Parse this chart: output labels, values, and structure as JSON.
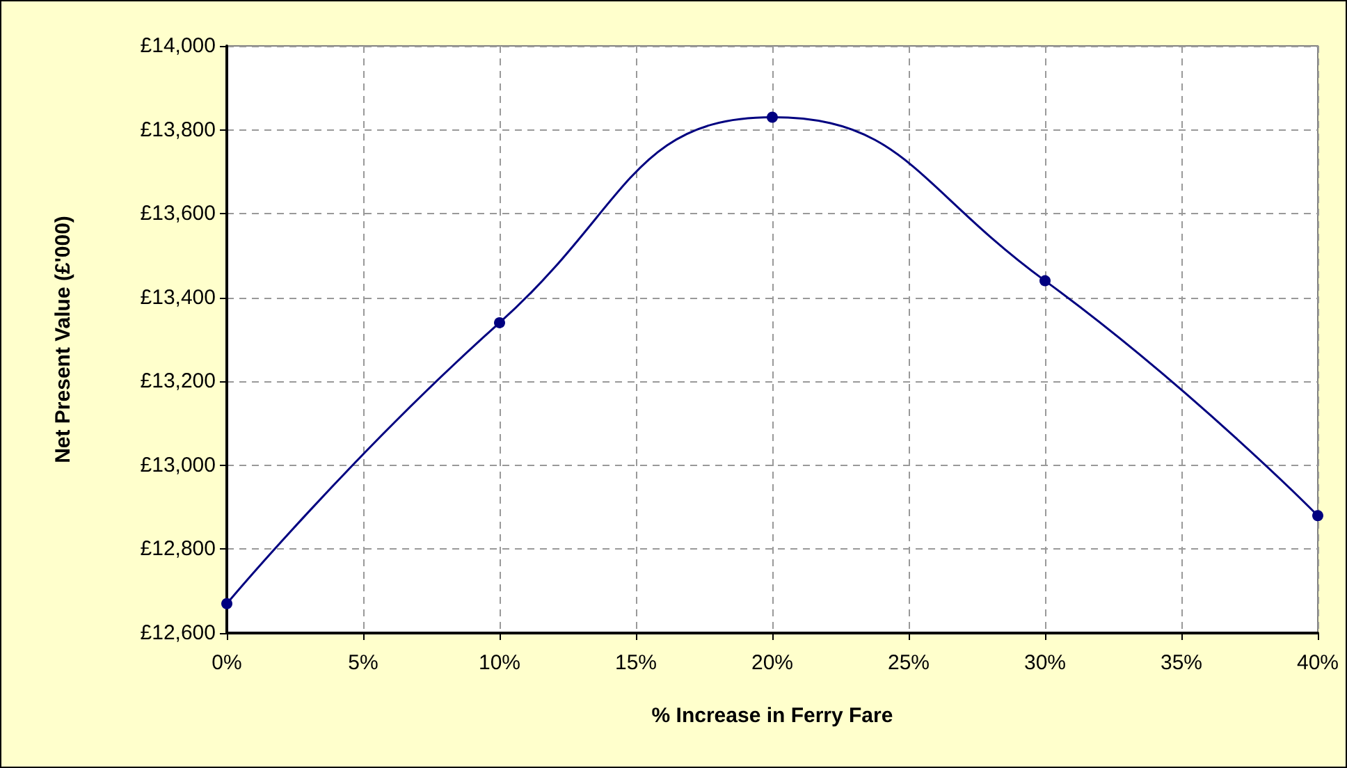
{
  "chart_data": {
    "type": "line",
    "xlabel": "% Increase in Ferry Fare",
    "ylabel": "Net Present Value (£'000)",
    "x": [
      0,
      10,
      20,
      30,
      40
    ],
    "series": [
      {
        "color": "#000080",
        "values": [
          12670,
          13340,
          13830,
          13440,
          12880
        ]
      }
    ],
    "xlim": [
      0,
      40
    ],
    "xticks": [
      {
        "value": 0,
        "label": "0%"
      },
      {
        "value": 5,
        "label": "5%"
      },
      {
        "value": 10,
        "label": "10%"
      },
      {
        "value": 15,
        "label": "15%"
      },
      {
        "value": 20,
        "label": "20%"
      },
      {
        "value": 25,
        "label": "25%"
      },
      {
        "value": 30,
        "label": "30%"
      },
      {
        "value": 35,
        "label": "35%"
      },
      {
        "value": 40,
        "label": "40%"
      }
    ],
    "ylim": [
      12600,
      14000
    ],
    "yticks": [
      {
        "value": 12600,
        "label": "£12,600"
      },
      {
        "value": 12800,
        "label": "£12,800"
      },
      {
        "value": 13000,
        "label": "£13,000"
      },
      {
        "value": 13200,
        "label": "£13,200"
      },
      {
        "value": 13400,
        "label": "£13,400"
      },
      {
        "value": 13600,
        "label": "£13,600"
      },
      {
        "value": 13800,
        "label": "£13,800"
      },
      {
        "value": 14000,
        "label": "£14,000"
      }
    ],
    "grid": true,
    "marker": "circle",
    "line_style": "solid"
  }
}
